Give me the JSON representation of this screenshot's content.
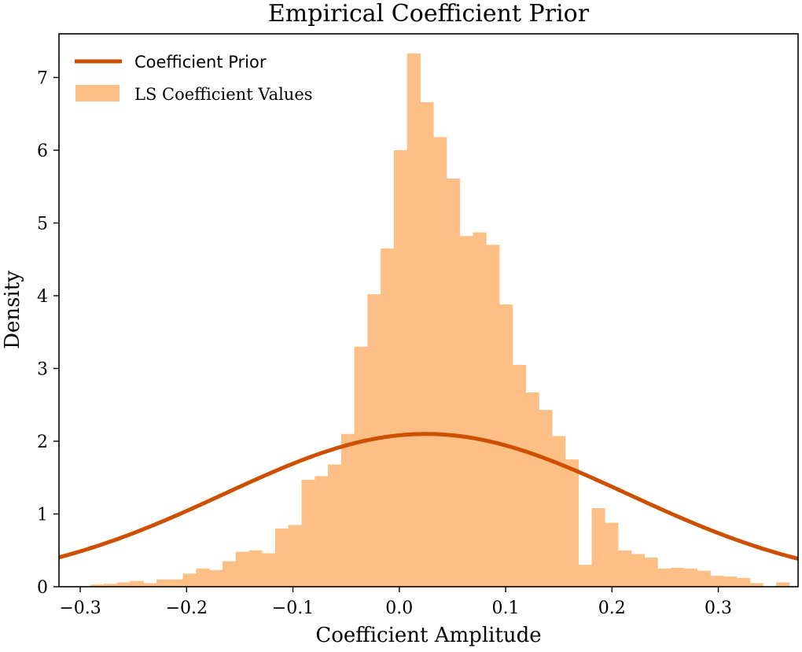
{
  "chart_data": {
    "type": "histogram_with_curve",
    "title": "Empirical Coefficient Prior",
    "xlabel": "Coefficient Amplitude",
    "ylabel": "Density",
    "xlim": [
      -0.32,
      0.375
    ],
    "ylim": [
      0,
      7.6
    ],
    "x_ticks": [
      -0.3,
      -0.2,
      -0.1,
      0.0,
      0.1,
      0.2,
      0.3
    ],
    "x_tick_labels": [
      "−0.3",
      "−0.2",
      "−0.1",
      "0.0",
      "0.1",
      "0.2",
      "0.3"
    ],
    "y_ticks": [
      0,
      1,
      2,
      3,
      4,
      5,
      6,
      7
    ],
    "y_tick_labels": [
      "0",
      "1",
      "2",
      "3",
      "4",
      "5",
      "6",
      "7"
    ],
    "grid": false,
    "legend_position": "top-left",
    "colors": {
      "curve": "#cc5000",
      "bars": "#fdbf86"
    },
    "series": [
      {
        "name": "Coefficient Prior",
        "kind": "curve",
        "distribution": "normal",
        "mean": 0.025,
        "std": 0.19,
        "x_range": [
          -0.32,
          0.375
        ],
        "peak": 2.11
      },
      {
        "name": "LS Coefficient Values",
        "kind": "histogram",
        "bin_edges": [
          -0.2903,
          -0.2779,
          -0.2655,
          -0.2531,
          -0.2407,
          -0.2283,
          -0.2159,
          -0.2035,
          -0.1911,
          -0.1787,
          -0.1663,
          -0.1539,
          -0.1415,
          -0.1291,
          -0.1167,
          -0.1043,
          -0.0919,
          -0.0795,
          -0.0671,
          -0.0547,
          -0.0423,
          -0.0299,
          -0.0175,
          -0.0051,
          0.0073,
          0.0197,
          0.0321,
          0.0445,
          0.0569,
          0.0693,
          0.0817,
          0.0941,
          0.1065,
          0.1189,
          0.1313,
          0.1437,
          0.1561,
          0.1685,
          0.1809,
          0.1933,
          0.2057,
          0.2181,
          0.2305,
          0.2429,
          0.2553,
          0.2677,
          0.2801,
          0.2925,
          0.3049,
          0.3173,
          0.3297,
          0.3421,
          0.3545,
          0.3669
        ],
        "values": [
          0.03,
          0.04,
          0.06,
          0.08,
          0.05,
          0.1,
          0.1,
          0.18,
          0.25,
          0.23,
          0.35,
          0.48,
          0.5,
          0.46,
          0.8,
          0.85,
          1.47,
          1.52,
          1.68,
          2.1,
          3.3,
          4.02,
          4.65,
          6.0,
          7.33,
          6.66,
          6.18,
          5.61,
          4.82,
          4.87,
          4.7,
          3.88,
          3.05,
          2.67,
          2.43,
          2.07,
          1.75,
          0.3,
          1.08,
          0.88,
          0.5,
          0.45,
          0.4,
          0.25,
          0.26,
          0.25,
          0.22,
          0.15,
          0.14,
          0.12,
          0.05,
          0.0,
          0.06
        ]
      }
    ]
  }
}
